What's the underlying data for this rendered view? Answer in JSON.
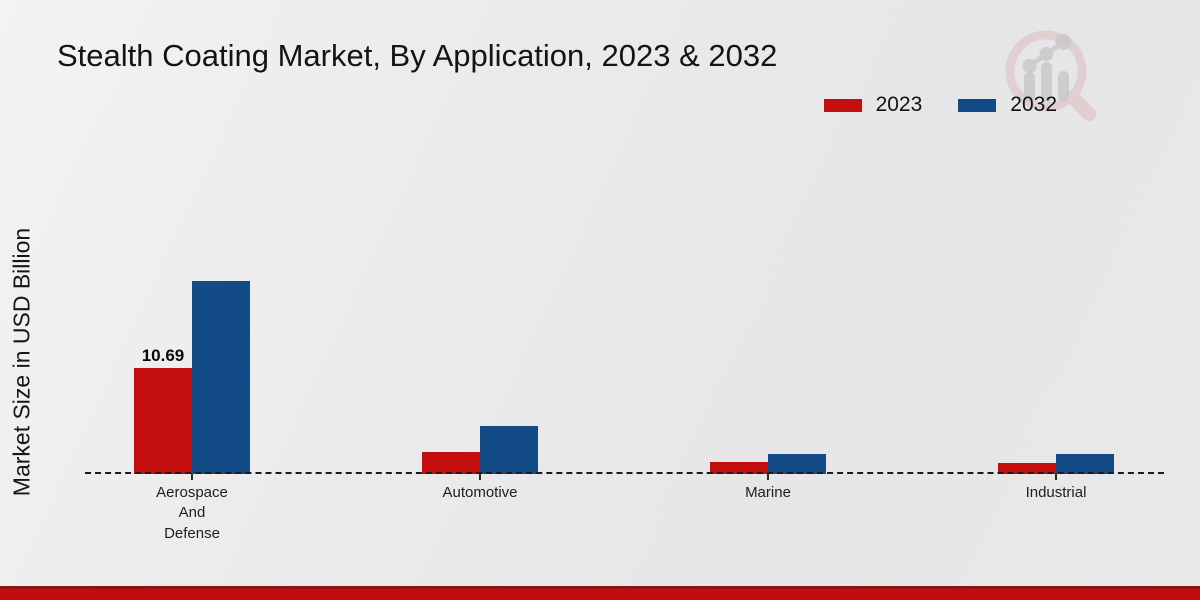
{
  "header": {
    "title": "Stealth Coating Market, By Application, 2023 & 2032"
  },
  "y_axis": {
    "label": "Market Size in USD Billion"
  },
  "legend": [
    {
      "label": "2023",
      "color": "#c40e0e"
    },
    {
      "label": "2032",
      "color": "#134b86"
    }
  ],
  "colors": {
    "series_2023": "#c40e0e",
    "series_2032": "#134b86",
    "background": "#e9e9ea",
    "footer_band": "#c20d0d",
    "footer_band_edge": "#8e1412",
    "axis": "#1c1c1c",
    "text": "#141414"
  },
  "watermark": {
    "icon": "magnifier-growth-chart-logo"
  },
  "chart_data": {
    "type": "bar",
    "title": "Stealth Coating Market, By Application, 2023 & 2032",
    "xlabel": "",
    "ylabel": "Market Size in USD Billion",
    "categories": [
      "Aerospace\nAnd\nDefense",
      "Automotive",
      "Marine",
      "Industrial"
    ],
    "series": [
      {
        "name": "2023",
        "color": "#c40e0e",
        "values": [
          10.69,
          2.25,
          1.22,
          1.12
        ],
        "point_labels": [
          "10.69",
          "",
          "",
          ""
        ]
      },
      {
        "name": "2032",
        "color": "#134b86",
        "values": [
          19.55,
          4.87,
          2.03,
          2.03
        ],
        "point_labels": [
          "",
          "",
          "",
          ""
        ]
      }
    ],
    "ylim": [
      0,
      20.5
    ],
    "grid": false,
    "y_ticks_visible": false,
    "baseline_style": "dashed",
    "legend_position": "top-right"
  }
}
